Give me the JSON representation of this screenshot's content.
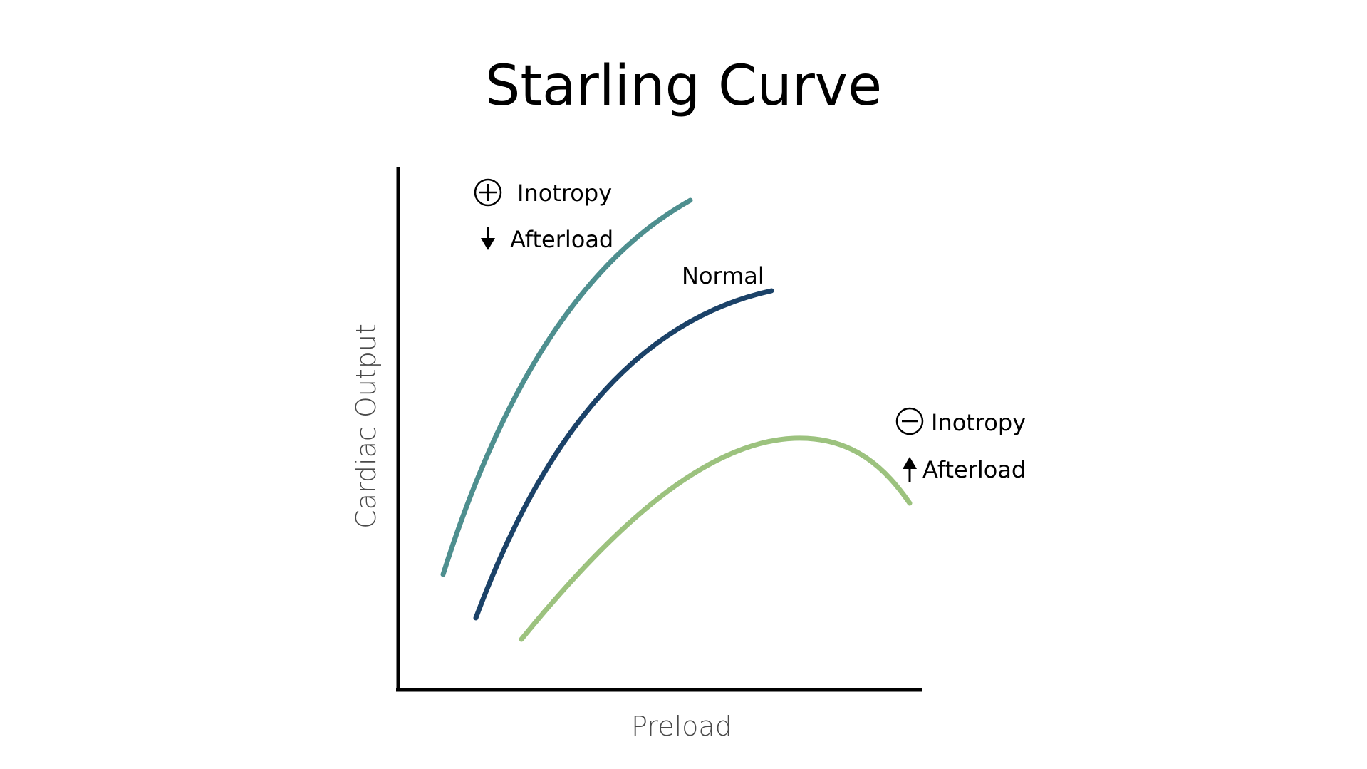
{
  "title": "Starling Curve",
  "chart_data": {
    "type": "line",
    "title": "Starling Curve",
    "xlabel": "Preload",
    "ylabel": "Cardiac Output",
    "xlim": [
      0,
      10
    ],
    "ylim": [
      0,
      10
    ],
    "grid": false,
    "legend": "none",
    "series": [
      {
        "color": "#4e8f8f",
        "x": [
          0.9,
          1.6,
          2.4,
          3.3,
          4.3,
          5.6
        ],
        "y": [
          2.2,
          4.3,
          6.0,
          7.5,
          8.8,
          9.4
        ]
      },
      {
        "color": "#1b4268",
        "x": [
          1.5,
          2.3,
          3.2,
          4.2,
          5.3,
          7.1
        ],
        "y": [
          1.4,
          3.1,
          4.7,
          6.0,
          7.1,
          7.7
        ]
      },
      {
        "color": "#9cc27e",
        "x": [
          2.4,
          3.8,
          5.1,
          6.3,
          7.6,
          8.5,
          9.6
        ],
        "y": [
          1.0,
          2.4,
          3.5,
          4.2,
          4.8,
          4.5,
          3.6
        ]
      }
    ],
    "annotations": [
      {
        "symbol": "⊕",
        "text": "Inotropy"
      },
      {
        "symbol": "↓",
        "text": "Afterload"
      },
      {
        "text": "Normal"
      },
      {
        "symbol": "⊖",
        "text": "Inotropy"
      },
      {
        "symbol": "↑",
        "text": "Afterload"
      }
    ]
  }
}
